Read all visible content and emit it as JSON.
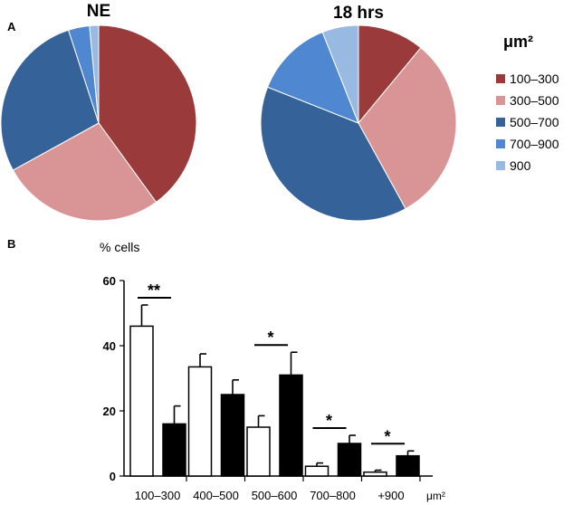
{
  "panel_a_label": "A",
  "panel_b_label": "B",
  "chart_data": [
    {
      "type": "pie",
      "title": "NE",
      "categories": [
        "100–300",
        "300–500",
        "500–700",
        "700–900",
        "900"
      ],
      "values": [
        40,
        27,
        28,
        3.5,
        1.5
      ],
      "colors": [
        "#9b3a3b",
        "#d99595",
        "#36629a",
        "#4f87d0",
        "#97b9e2"
      ]
    },
    {
      "type": "pie",
      "title": "18 hrs",
      "categories": [
        "100–300",
        "300–500",
        "500–700",
        "700–900",
        "900"
      ],
      "values": [
        11,
        31,
        39,
        13,
        6
      ],
      "colors": [
        "#9b3a3b",
        "#d99595",
        "#36629a",
        "#4f87d0",
        "#97b9e2"
      ]
    },
    {
      "type": "bar",
      "ylabel": "% cells",
      "xlabel": "μm²",
      "categories": [
        "100–300",
        "400–500",
        "500–600",
        "700–800",
        "+900"
      ],
      "ylim": [
        0,
        60
      ],
      "yticks": [
        0,
        20,
        40,
        60
      ],
      "series": [
        {
          "values": [
            46,
            33.5,
            15,
            3,
            1.2
          ],
          "errors": [
            6.5,
            4,
            3.5,
            1,
            0.6
          ],
          "fill": "#ffffff"
        },
        {
          "values": [
            16,
            25,
            31,
            10,
            6.2
          ],
          "errors": [
            5.5,
            4.5,
            7,
            2.5,
            1.5
          ],
          "fill": "#000000"
        }
      ],
      "significance": [
        "**",
        "",
        "*",
        "*",
        "*"
      ]
    }
  ],
  "legend": {
    "title": "μm²",
    "items": [
      {
        "label": "100–300",
        "color": "#9b3a3b"
      },
      {
        "label": "300–500",
        "color": "#d99595"
      },
      {
        "label": "500–700",
        "color": "#36629a"
      },
      {
        "label": "700–900",
        "color": "#4f87d0"
      },
      {
        "label": "900",
        "color": "#97b9e2"
      }
    ]
  }
}
